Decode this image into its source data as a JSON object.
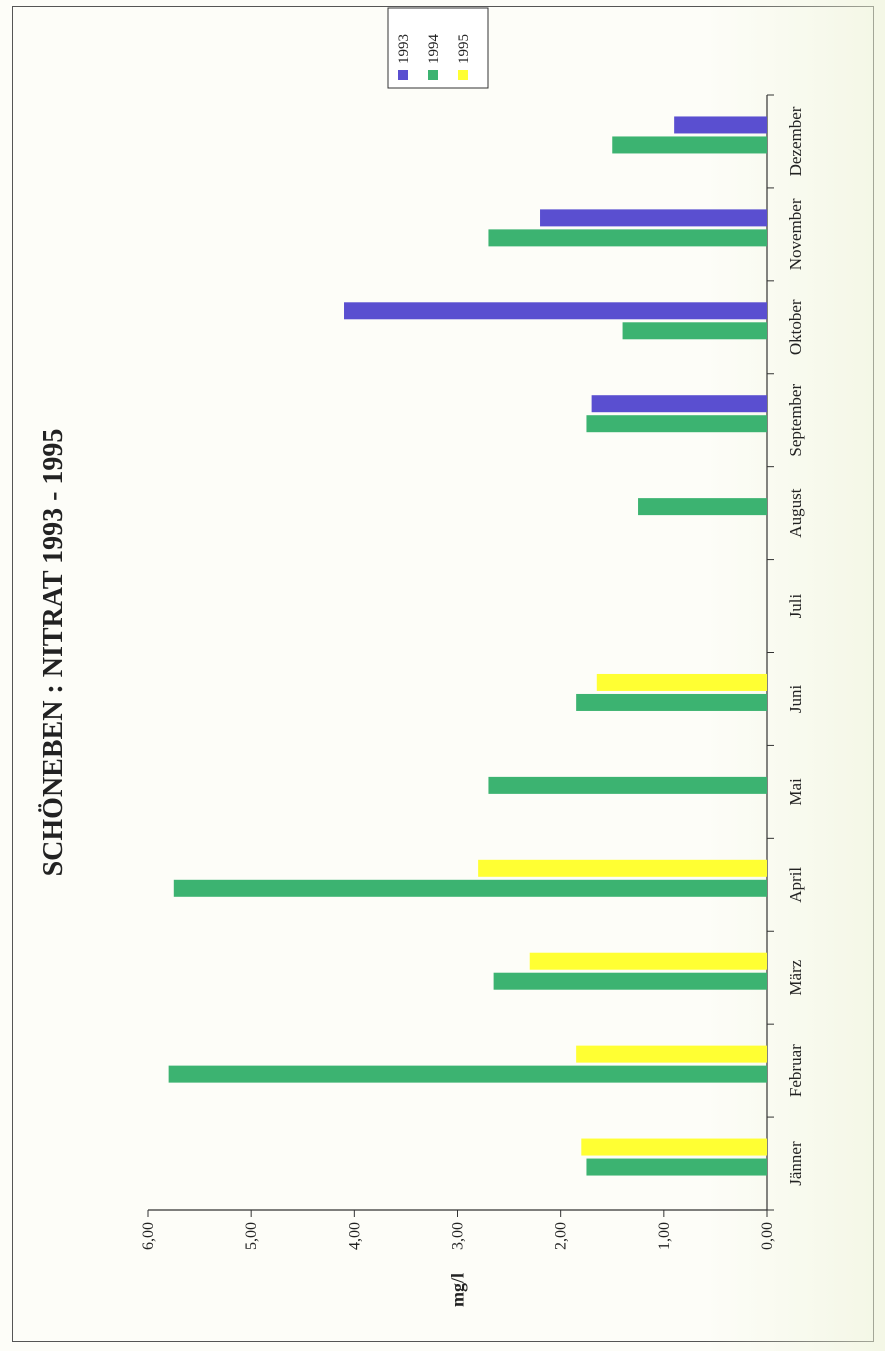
{
  "chart_data": {
    "type": "bar",
    "orientation": "horizontal",
    "title": "SCHÖNEBEN : NITRAT 1993 - 1995",
    "xlabel": "",
    "ylabel": "mg/l",
    "ylim": [
      0,
      6
    ],
    "ticks": [
      "0,00",
      "1,00",
      "2,00",
      "3,00",
      "4,00",
      "5,00",
      "6,00"
    ],
    "categories": [
      "Jänner",
      "Februar",
      "März",
      "April",
      "Mai",
      "Juni",
      "Juli",
      "August",
      "September",
      "Oktober",
      "November",
      "Dezember"
    ],
    "series": [
      {
        "name": "1993",
        "color": "#5a4fd0",
        "values": [
          null,
          null,
          null,
          null,
          null,
          null,
          null,
          null,
          1.7,
          4.1,
          2.2,
          0.9
        ]
      },
      {
        "name": "1994",
        "color": "#3cb371",
        "values": [
          1.75,
          5.8,
          2.65,
          5.75,
          2.7,
          1.85,
          null,
          1.25,
          1.75,
          1.4,
          2.7,
          1.5
        ]
      },
      {
        "name": "1995",
        "color": "#ffff33",
        "values": [
          1.8,
          1.85,
          2.3,
          2.8,
          null,
          1.65,
          null,
          null,
          null,
          null,
          null,
          null
        ]
      }
    ],
    "legend_position": "top-right",
    "grid": false
  }
}
